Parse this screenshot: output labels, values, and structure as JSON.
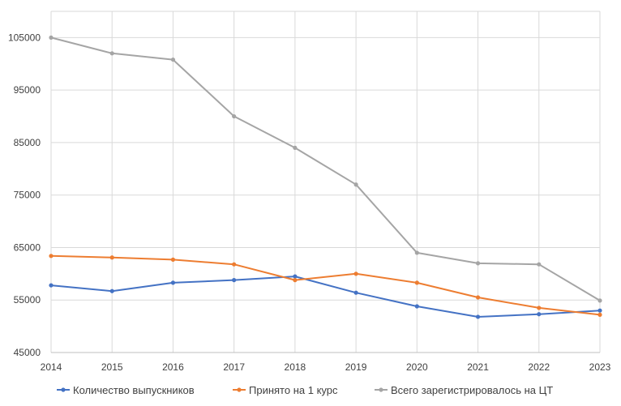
{
  "chart_data": {
    "type": "line",
    "title": "",
    "xlabel": "",
    "ylabel": "",
    "x": [
      "2014",
      "2015",
      "2016",
      "2017",
      "2018",
      "2019",
      "2020",
      "2021",
      "2022",
      "2023"
    ],
    "ylim": [
      45000,
      110000
    ],
    "yticks": [
      "45000",
      "55000",
      "65000",
      "75000",
      "85000",
      "95000",
      "105000"
    ],
    "grid": true,
    "legend_position": "bottom",
    "series": [
      {
        "name": "Количество выпускников",
        "color": "#4472c4",
        "values": [
          57800,
          56700,
          58300,
          58800,
          59500,
          56400,
          53800,
          51800,
          52300,
          53000
        ]
      },
      {
        "name": "Принято на 1 курс",
        "color": "#ed7d31",
        "values": [
          63400,
          63100,
          62700,
          61800,
          58800,
          60000,
          58300,
          55500,
          53500,
          52200
        ]
      },
      {
        "name": "Всего зарегистрировалось на ЦТ",
        "color": "#a5a5a5",
        "values": [
          105000,
          102000,
          100800,
          90000,
          84000,
          77000,
          64000,
          62000,
          61800,
          54900
        ]
      }
    ]
  }
}
